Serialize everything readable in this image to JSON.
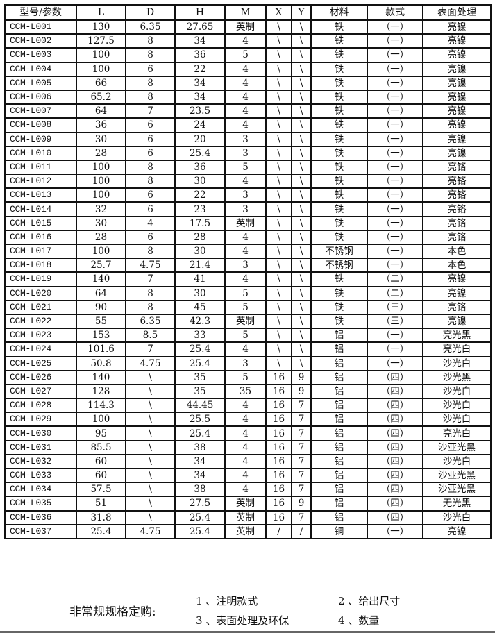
{
  "headers": [
    "型号/参数",
    "L",
    "D",
    "H",
    "M",
    "X",
    "Y",
    "材料",
    "款式",
    "表面处理"
  ],
  "rows": [
    [
      "CCM-L001",
      "130",
      "6.35",
      "27.65",
      "英制",
      "\\",
      "\\",
      "铁",
      "（一）",
      "亮镍"
    ],
    [
      "CCM-L002",
      "127.5",
      "8",
      "34",
      "4",
      "\\",
      "\\",
      "铁",
      "（一）",
      "亮镍"
    ],
    [
      "CCM-L003",
      "100",
      "8",
      "36",
      "5",
      "\\",
      "\\",
      "铁",
      "（一）",
      "亮镍"
    ],
    [
      "CCM-L004",
      "100",
      "6",
      "22",
      "4",
      "\\",
      "\\",
      "铁",
      "（一）",
      "亮镍"
    ],
    [
      "CCM-L005",
      "66",
      "8",
      "34",
      "4",
      "\\",
      "\\",
      "铁",
      "（一）",
      "亮镍"
    ],
    [
      "CCM-L006",
      "65.2",
      "8",
      "34",
      "4",
      "\\",
      "\\",
      "铁",
      "（一）",
      "亮镍"
    ],
    [
      "CCM-L007",
      "64",
      "7",
      "23.5",
      "4",
      "\\",
      "\\",
      "铁",
      "（一）",
      "亮镍"
    ],
    [
      "CCM-L008",
      "36",
      "6",
      "24",
      "4",
      "\\",
      "\\",
      "铁",
      "（一）",
      "亮镍"
    ],
    [
      "CCM-L009",
      "30",
      "6",
      "20",
      "3",
      "\\",
      "\\",
      "铁",
      "（一）",
      "亮镍"
    ],
    [
      "CCM-L010",
      "28",
      "6",
      "25.4",
      "3",
      "\\",
      "\\",
      "铁",
      "（一）",
      "亮镍"
    ],
    [
      "CCM-L011",
      "100",
      "8",
      "36",
      "5",
      "\\",
      "\\",
      "铁",
      "（一）",
      "亮铬"
    ],
    [
      "CCM-L012",
      "100",
      "8",
      "30",
      "4",
      "\\",
      "\\",
      "铁",
      "（一）",
      "亮铬"
    ],
    [
      "CCM-L013",
      "100",
      "6",
      "22",
      "3",
      "\\",
      "\\",
      "铁",
      "（一）",
      "亮铬"
    ],
    [
      "CCM-L014",
      "32",
      "6",
      "23",
      "3",
      "\\",
      "\\",
      "铁",
      "（一）",
      "亮铬"
    ],
    [
      "CCM-L015",
      "30",
      "4",
      "17.5",
      "英制",
      "\\",
      "\\",
      "铁",
      "（一）",
      "亮铬"
    ],
    [
      "CCM-L016",
      "28",
      "6",
      "28",
      "4",
      "\\",
      "\\",
      "铁",
      "（一）",
      "亮铬"
    ],
    [
      "CCM-L017",
      "100",
      "8",
      "30",
      "4",
      "\\",
      "\\",
      "不锈钢",
      "（一）",
      "本色"
    ],
    [
      "CCM-L018",
      "25.7",
      "4.75",
      "21.4",
      "3",
      "\\",
      "\\",
      "不锈钢",
      "（一）",
      "本色"
    ],
    [
      "CCM-L019",
      "140",
      "7",
      "41",
      "4",
      "\\",
      "\\",
      "铁",
      "（二）",
      "亮镍"
    ],
    [
      "CCM-L020",
      "64",
      "8",
      "30",
      "5",
      "\\",
      "\\",
      "铁",
      "（二）",
      "亮镍"
    ],
    [
      "CCM-L021",
      "90",
      "8",
      "45",
      "5",
      "\\",
      "\\",
      "铁",
      "（三）",
      "亮铬"
    ],
    [
      "CCM-L022",
      "55",
      "6.35",
      "42.3",
      "英制",
      "\\",
      "\\",
      "铁",
      "（三）",
      "亮镍"
    ],
    [
      "CCM-L023",
      "153",
      "8.5",
      "33",
      "5",
      "\\",
      "\\",
      "铝",
      "（一）",
      "亮光黑"
    ],
    [
      "CCM-L024",
      "101.6",
      "7",
      "25.4",
      "4",
      "\\",
      "\\",
      "铝",
      "（一）",
      "亮光白"
    ],
    [
      "CCM-L025",
      "50.8",
      "4.75",
      "25.4",
      "3",
      "\\",
      "\\",
      "铝",
      "（一）",
      "沙光白"
    ],
    [
      "CCM-L026",
      "140",
      "\\",
      "35",
      "5",
      "16",
      "9",
      "铝",
      "（四）",
      "沙光黑"
    ],
    [
      "CCM-L027",
      "128",
      "\\",
      "35",
      "35",
      "16",
      "9",
      "铝",
      "（四）",
      "沙光白"
    ],
    [
      "CCM-L028",
      "114.3",
      "\\",
      "44.45",
      "4",
      "16",
      "7",
      "铝",
      "（四）",
      "沙光白"
    ],
    [
      "CCM-L029",
      "100",
      "\\",
      "25.5",
      "4",
      "16",
      "7",
      "铝",
      "（四）",
      "沙光白"
    ],
    [
      "CCM-L030",
      "95",
      "\\",
      "25.4",
      "4",
      "16",
      "7",
      "铝",
      "（四）",
      "亮光白"
    ],
    [
      "CCM-L031",
      "85.5",
      "\\",
      "38",
      "4",
      "16",
      "7",
      "铝",
      "（四）",
      "沙亚光黑"
    ],
    [
      "CCM-L032",
      "60",
      "\\",
      "34",
      "4",
      "16",
      "7",
      "铝",
      "（四）",
      "沙光白"
    ],
    [
      "CCM-L033",
      "60",
      "\\",
      "34",
      "4",
      "16",
      "7",
      "铝",
      "（四）",
      "沙亚光黑"
    ],
    [
      "CCM-L034",
      "57.5",
      "\\",
      "38",
      "4",
      "16",
      "7",
      "铝",
      "（四）",
      "沙亚光黑"
    ],
    [
      "CCM-L035",
      "51",
      "\\",
      "27.5",
      "英制",
      "16",
      "9",
      "铝",
      "（四）",
      "无光黑"
    ],
    [
      "CCM-L036",
      "31.8",
      "\\",
      "25.4",
      "英制",
      "16",
      "7",
      "铝",
      "（四）",
      "沙光白"
    ],
    [
      "CCM-L037",
      "25.4",
      "4.75",
      "25.4",
      "英制",
      "/",
      "/",
      "铜",
      "（一）",
      "亮镍"
    ]
  ],
  "footer": {
    "title": "非常规规格定购:",
    "items": [
      "1 、注明款式",
      "2 、给出尺寸",
      "3 、表面处理及环保",
      "4 、数量"
    ]
  }
}
